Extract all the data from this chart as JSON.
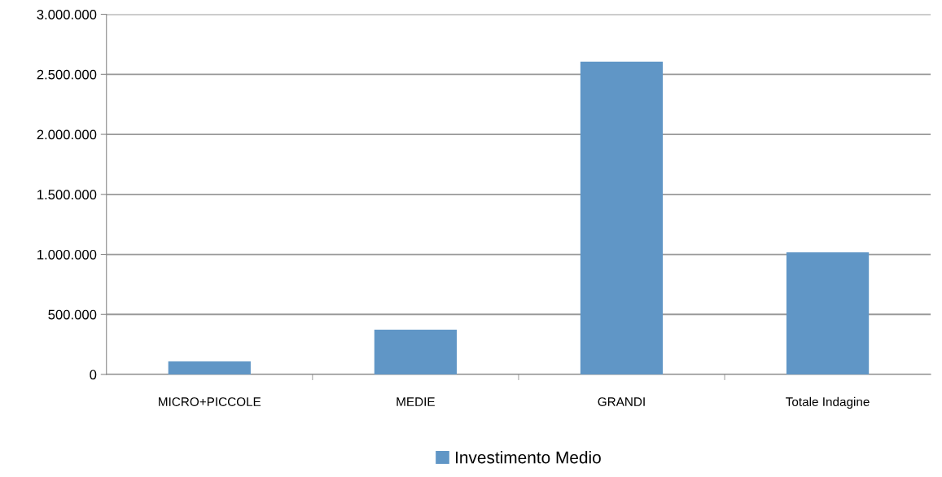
{
  "chart_data": {
    "type": "bar",
    "categories": [
      "MICRO+PICCOLE",
      "MEDIE",
      "GRANDI",
      "Totale Indagine"
    ],
    "series": [
      {
        "name": "Investimento Medio",
        "color": "#6096c6",
        "values": [
          108000,
          373000,
          2606000,
          1018000
        ]
      }
    ],
    "ylim": [
      0,
      3000000
    ],
    "yticks": [
      {
        "value": 0,
        "label": "0"
      },
      {
        "value": 500000,
        "label": "500.000"
      },
      {
        "value": 1000000,
        "label": "1.000.000"
      },
      {
        "value": 1500000,
        "label": "1.500.000"
      },
      {
        "value": 2000000,
        "label": "2.000.000"
      },
      {
        "value": 2500000,
        "label": "2.500.000"
      },
      {
        "value": 3000000,
        "label": "3.000.000"
      }
    ],
    "grid": "y",
    "legend": "bottom"
  }
}
